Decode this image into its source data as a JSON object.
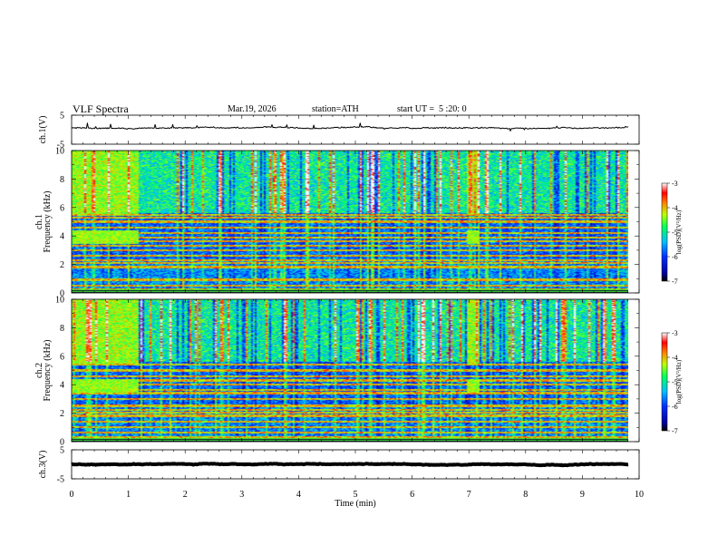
{
  "header": {
    "title": "VLF Spectra",
    "date": "Mar.19, 2026",
    "station": "station=ATH",
    "start": "start UT =  5 :20: 0"
  },
  "chart_data": [
    {
      "type": "line",
      "panel": "ch1-waveform",
      "ylabel": "ch.1(V)",
      "ylim": [
        -5,
        5
      ],
      "yticks": [
        "5",
        "-5"
      ],
      "xlim": [
        0,
        10
      ],
      "baseline": 0.6,
      "noise": 0.35
    },
    {
      "type": "heatmap",
      "panel": "ch1-spectrogram",
      "ylabel": "ch.1\nFrequency (kHz)",
      "ylim": [
        0,
        10
      ],
      "yticks": [
        "0",
        "2",
        "4",
        "6",
        "8",
        "10"
      ],
      "xlim": [
        0,
        10
      ],
      "colorbar": {
        "label": "log(PSD)(V²/Hz)",
        "ticks": [
          "-3",
          "-4",
          "-5",
          "-6",
          "-7"
        ],
        "range": [
          -7,
          -3
        ]
      },
      "bands_khz": [
        0.2,
        0.5,
        0.9,
        1.8,
        2.1,
        2.3,
        2.6,
        3.0,
        3.3,
        3.6,
        3.9,
        4.2,
        4.6,
        5.0,
        5.3,
        5.5
      ],
      "noisy_segments_min": [
        [
          0,
          1.2
        ],
        [
          7.1,
          7.3
        ]
      ]
    },
    {
      "type": "heatmap",
      "panel": "ch2-spectrogram",
      "ylabel": "ch.2\nFrequency (kHz)",
      "ylim": [
        0,
        10
      ],
      "yticks": [
        "0",
        "2",
        "4",
        "6",
        "8",
        "10"
      ],
      "xlim": [
        0,
        10
      ],
      "colorbar": {
        "label": "log(PSD)(V²/Hz)",
        "ticks": [
          "-3",
          "-4",
          "-5",
          "-6",
          "-7"
        ],
        "range": [
          -7,
          -3
        ]
      },
      "bands_khz": [
        0.3,
        0.6,
        1.0,
        1.4,
        1.8,
        2.0,
        2.2,
        2.5,
        3.0,
        3.4,
        3.6,
        4.0,
        4.3,
        4.6,
        5.0,
        5.4
      ],
      "noisy_segments_min": [
        [
          0,
          1.2
        ],
        [
          7.1,
          7.3
        ]
      ]
    },
    {
      "type": "line",
      "panel": "ch3-waveform",
      "ylabel": "ch.3(V)",
      "ylim": [
        -5,
        5
      ],
      "yticks": [
        "5",
        "-5"
      ],
      "xlim": [
        0,
        10
      ],
      "baseline": 0.0,
      "noise": 0.15
    }
  ],
  "xaxis": {
    "label": "Time (min)",
    "ticks": [
      "0",
      "1",
      "2",
      "3",
      "4",
      "5",
      "6",
      "7",
      "8",
      "9",
      "10"
    ]
  }
}
